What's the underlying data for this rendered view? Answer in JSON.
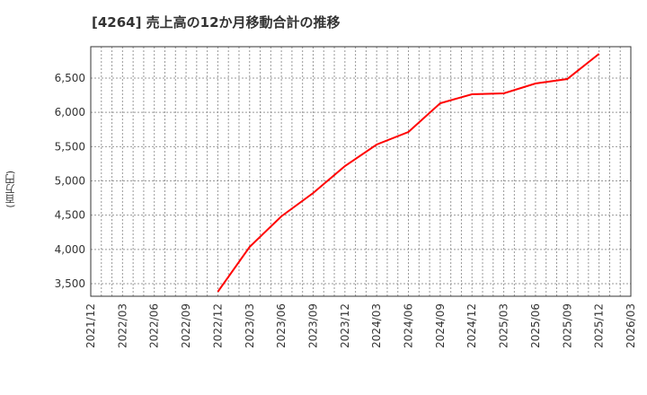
{
  "chart": {
    "title": "[4264]  売上高の12か月移動合計の推移",
    "ylabel": "(百万円)"
  },
  "chart_data": {
    "type": "line",
    "title": "[4264]  売上高の12か月移動合計の推移",
    "xlabel": "",
    "ylabel": "(百万円)",
    "x_ticks": [
      "2021/12",
      "2022/03",
      "2022/06",
      "2022/09",
      "2022/12",
      "2023/03",
      "2023/06",
      "2023/09",
      "2023/12",
      "2024/03",
      "2024/06",
      "2024/09",
      "2024/12",
      "2025/03",
      "2025/06",
      "2025/09",
      "2025/12",
      "2026/03"
    ],
    "y_ticks": [
      3500,
      4000,
      4500,
      5000,
      5500,
      6000,
      6500
    ],
    "y_tick_labels": [
      "3,500",
      "4,000",
      "4,500",
      "5,000",
      "5,500",
      "6,000",
      "6,500"
    ],
    "ylim": [
      3380,
      6950
    ],
    "grid": true,
    "legend": null,
    "series": [
      {
        "name": "売上高12か月移動合計",
        "color": "#ff0000",
        "x": [
          "2022/12",
          "2023/03",
          "2023/06",
          "2023/09",
          "2023/12",
          "2024/03",
          "2024/06",
          "2024/09",
          "2024/12",
          "2025/03",
          "2025/06",
          "2025/09",
          "2025/12"
        ],
        "values": [
          3382,
          4037,
          4483,
          4823,
          5216,
          5531,
          5714,
          6133,
          6264,
          6277,
          6421,
          6487,
          6854
        ]
      }
    ]
  },
  "colors": {
    "line": "#ff0000",
    "grid": "#999999",
    "axis": "#333333"
  }
}
